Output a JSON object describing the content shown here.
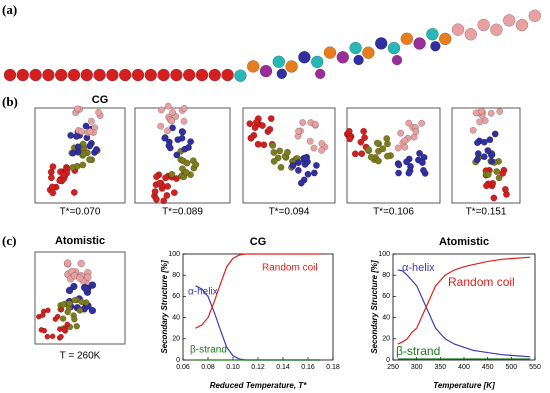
{
  "panels": {
    "a": {
      "label": "(a)"
    },
    "b": {
      "label": "(b)",
      "title": "CG",
      "snapshots": [
        "T*=0.070",
        "T*=0.089",
        "T*=0.094",
        "T*=0.106",
        "T*=0.151"
      ]
    },
    "c": {
      "label": "(c)",
      "title": "Atomistic",
      "snapshot": "T = 260K"
    }
  },
  "chart_data": [
    {
      "type": "line",
      "title": "CG",
      "xlabel": "Reduced Temperature, T*",
      "ylabel": "Secondary Structure [%]",
      "x": [
        0.07,
        0.075,
        0.08,
        0.085,
        0.09,
        0.095,
        0.1,
        0.105,
        0.11,
        0.115,
        0.12,
        0.125,
        0.13,
        0.135,
        0.14,
        0.145,
        0.15,
        0.155,
        0.16,
        0.165,
        0.17
      ],
      "series": [
        {
          "name": "α-helix",
          "color": "#3b3bb5",
          "values": [
            70,
            67,
            60,
            45,
            28,
            12,
            4,
            1,
            0,
            0,
            0,
            0,
            0,
            0,
            0,
            0,
            0,
            0,
            0,
            0,
            0
          ]
        },
        {
          "name": "Random coil",
          "color": "#e0201b",
          "values": [
            30,
            33,
            40,
            55,
            72,
            88,
            96,
            99,
            100,
            100,
            100,
            100,
            100,
            100,
            100,
            100,
            100,
            100,
            100,
            100,
            100
          ]
        },
        {
          "name": "β-strand",
          "color": "#1a7a1a",
          "values": [
            0,
            0,
            0,
            0,
            0,
            0,
            0,
            0,
            0,
            0,
            0,
            0,
            0,
            0,
            0,
            0,
            0,
            0,
            0,
            0,
            0
          ]
        }
      ],
      "xlim": [
        0.06,
        0.18
      ],
      "xticks": [
        0.06,
        0.08,
        {
          "value": 0.1,
          "label": "0.10"
        },
        0.12,
        0.14,
        0.16,
        0.18
      ],
      "ylim": [
        0,
        100
      ],
      "yticks": [
        0,
        20,
        40,
        60,
        80,
        100
      ]
    },
    {
      "type": "line",
      "title": "Atomistic",
      "xlabel": "Temperature [K]",
      "ylabel": "Secondary Structure [%]",
      "x": [
        260,
        270,
        280,
        290,
        300,
        310,
        320,
        330,
        340,
        350,
        360,
        380,
        400,
        420,
        450,
        480,
        510,
        540
      ],
      "series": [
        {
          "name": "α-helix",
          "color": "#3b3bb5",
          "values": [
            85,
            84,
            80,
            75,
            70,
            60,
            50,
            40,
            30,
            25,
            20,
            15,
            12,
            9,
            7,
            5,
            4,
            3
          ]
        },
        {
          "name": "Random coil",
          "color": "#e0201b",
          "values": [
            15,
            17,
            20,
            26,
            30,
            40,
            50,
            60,
            70,
            75,
            80,
            85,
            88,
            90,
            93,
            95,
            96,
            97
          ]
        },
        {
          "name": "β-strand",
          "color": "#1a7a1a",
          "values": [
            1,
            1,
            1,
            1,
            1,
            1,
            1,
            1,
            1,
            1,
            1,
            1,
            1,
            1,
            1,
            1,
            1,
            1
          ]
        }
      ],
      "xlim": [
        250,
        550
      ],
      "xticks": [
        250,
        300,
        350,
        400,
        450,
        500,
        550
      ],
      "ylim": [
        0,
        100
      ],
      "yticks": [
        0,
        20,
        40,
        60,
        80,
        100
      ]
    }
  ]
}
